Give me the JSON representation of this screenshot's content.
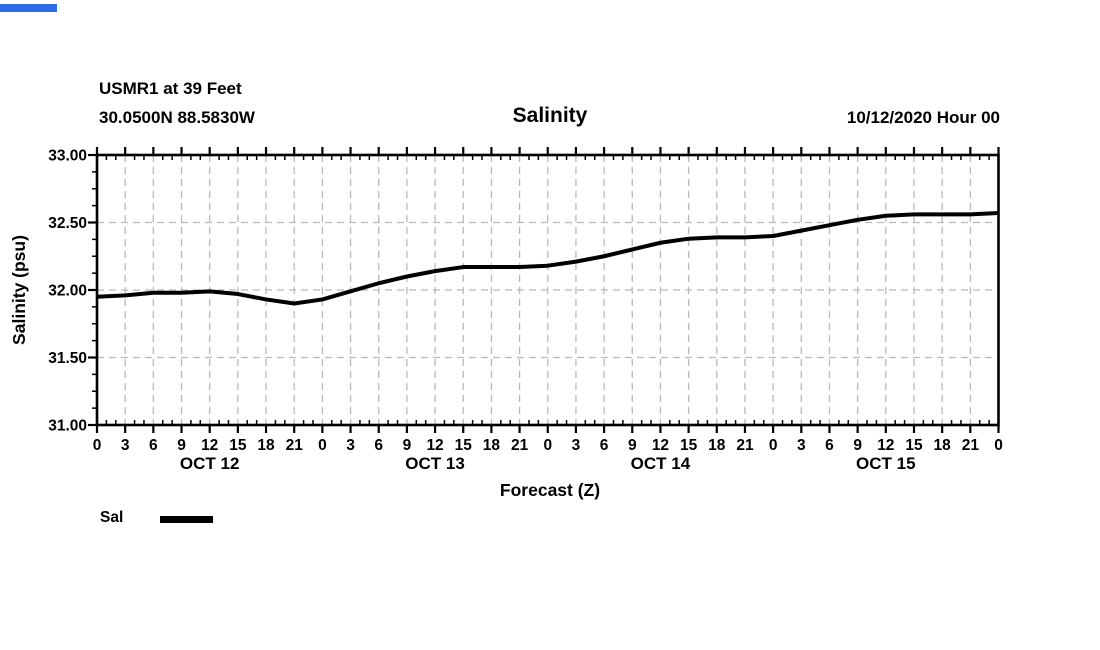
{
  "header": {
    "station_line1": "USMR1 at 39 Feet",
    "station_line2": "30.0500N 88.5830W",
    "title": "Salinity",
    "run_info": "10/12/2020 Hour 00"
  },
  "decor": {
    "top_left_bar_color": "#2b6ce6"
  },
  "legend": {
    "label": "Sal",
    "line_color": "#000000"
  },
  "chart_data": {
    "type": "line",
    "title": "Salinity",
    "xlabel": "Forecast (Z)",
    "ylabel": "Salinity (psu)",
    "xlim_hours": [
      0,
      96
    ],
    "ylim": [
      31.0,
      33.0
    ],
    "grid": "dashed gray, vertical every 3 hours, horizontal every 0.5 psu",
    "legend_position": "bottom-left",
    "axis_color": "#000000",
    "gridline_color": "#b9b9b9",
    "line_width": 4,
    "y_major": [
      31.0,
      31.5,
      32.0,
      32.5,
      33.0
    ],
    "y_tick_labels": [
      "31.00",
      "31.50",
      "32.00",
      "32.50",
      "33.00"
    ],
    "y_minor_step": 0.125,
    "x_major_step_hours": 3,
    "x_minor_step_hours": 1,
    "x_hours": [
      0,
      3,
      6,
      9,
      12,
      15,
      18,
      21,
      24,
      27,
      30,
      33,
      36,
      39,
      42,
      45,
      48,
      51,
      54,
      57,
      60,
      63,
      66,
      69,
      72,
      75,
      78,
      81,
      84,
      87,
      90,
      93,
      96
    ],
    "x_hour_labels": [
      "0",
      "3",
      "6",
      "9",
      "12",
      "15",
      "18",
      "21",
      "0",
      "3",
      "6",
      "9",
      "12",
      "15",
      "18",
      "21",
      "0",
      "3",
      "6",
      "9",
      "12",
      "15",
      "18",
      "21",
      "0",
      "3",
      "6",
      "9",
      "12",
      "15",
      "18",
      "21",
      "0"
    ],
    "day_labels": [
      {
        "label": "OCT 12",
        "center_hour": 12
      },
      {
        "label": "OCT 13",
        "center_hour": 36
      },
      {
        "label": "OCT 14",
        "center_hour": 60
      },
      {
        "label": "OCT 15",
        "center_hour": 84
      }
    ],
    "series": [
      {
        "name": "Sal",
        "color": "#000000",
        "x_step_hours": 3,
        "values": [
          31.95,
          31.96,
          31.98,
          31.98,
          31.99,
          31.97,
          31.93,
          31.9,
          31.93,
          31.99,
          32.05,
          32.1,
          32.14,
          32.17,
          32.17,
          32.17,
          32.18,
          32.21,
          32.25,
          32.3,
          32.35,
          32.38,
          32.39,
          32.39,
          32.4,
          32.44,
          32.48,
          32.52,
          32.55,
          32.56,
          32.56,
          32.56,
          32.57
        ]
      }
    ]
  }
}
